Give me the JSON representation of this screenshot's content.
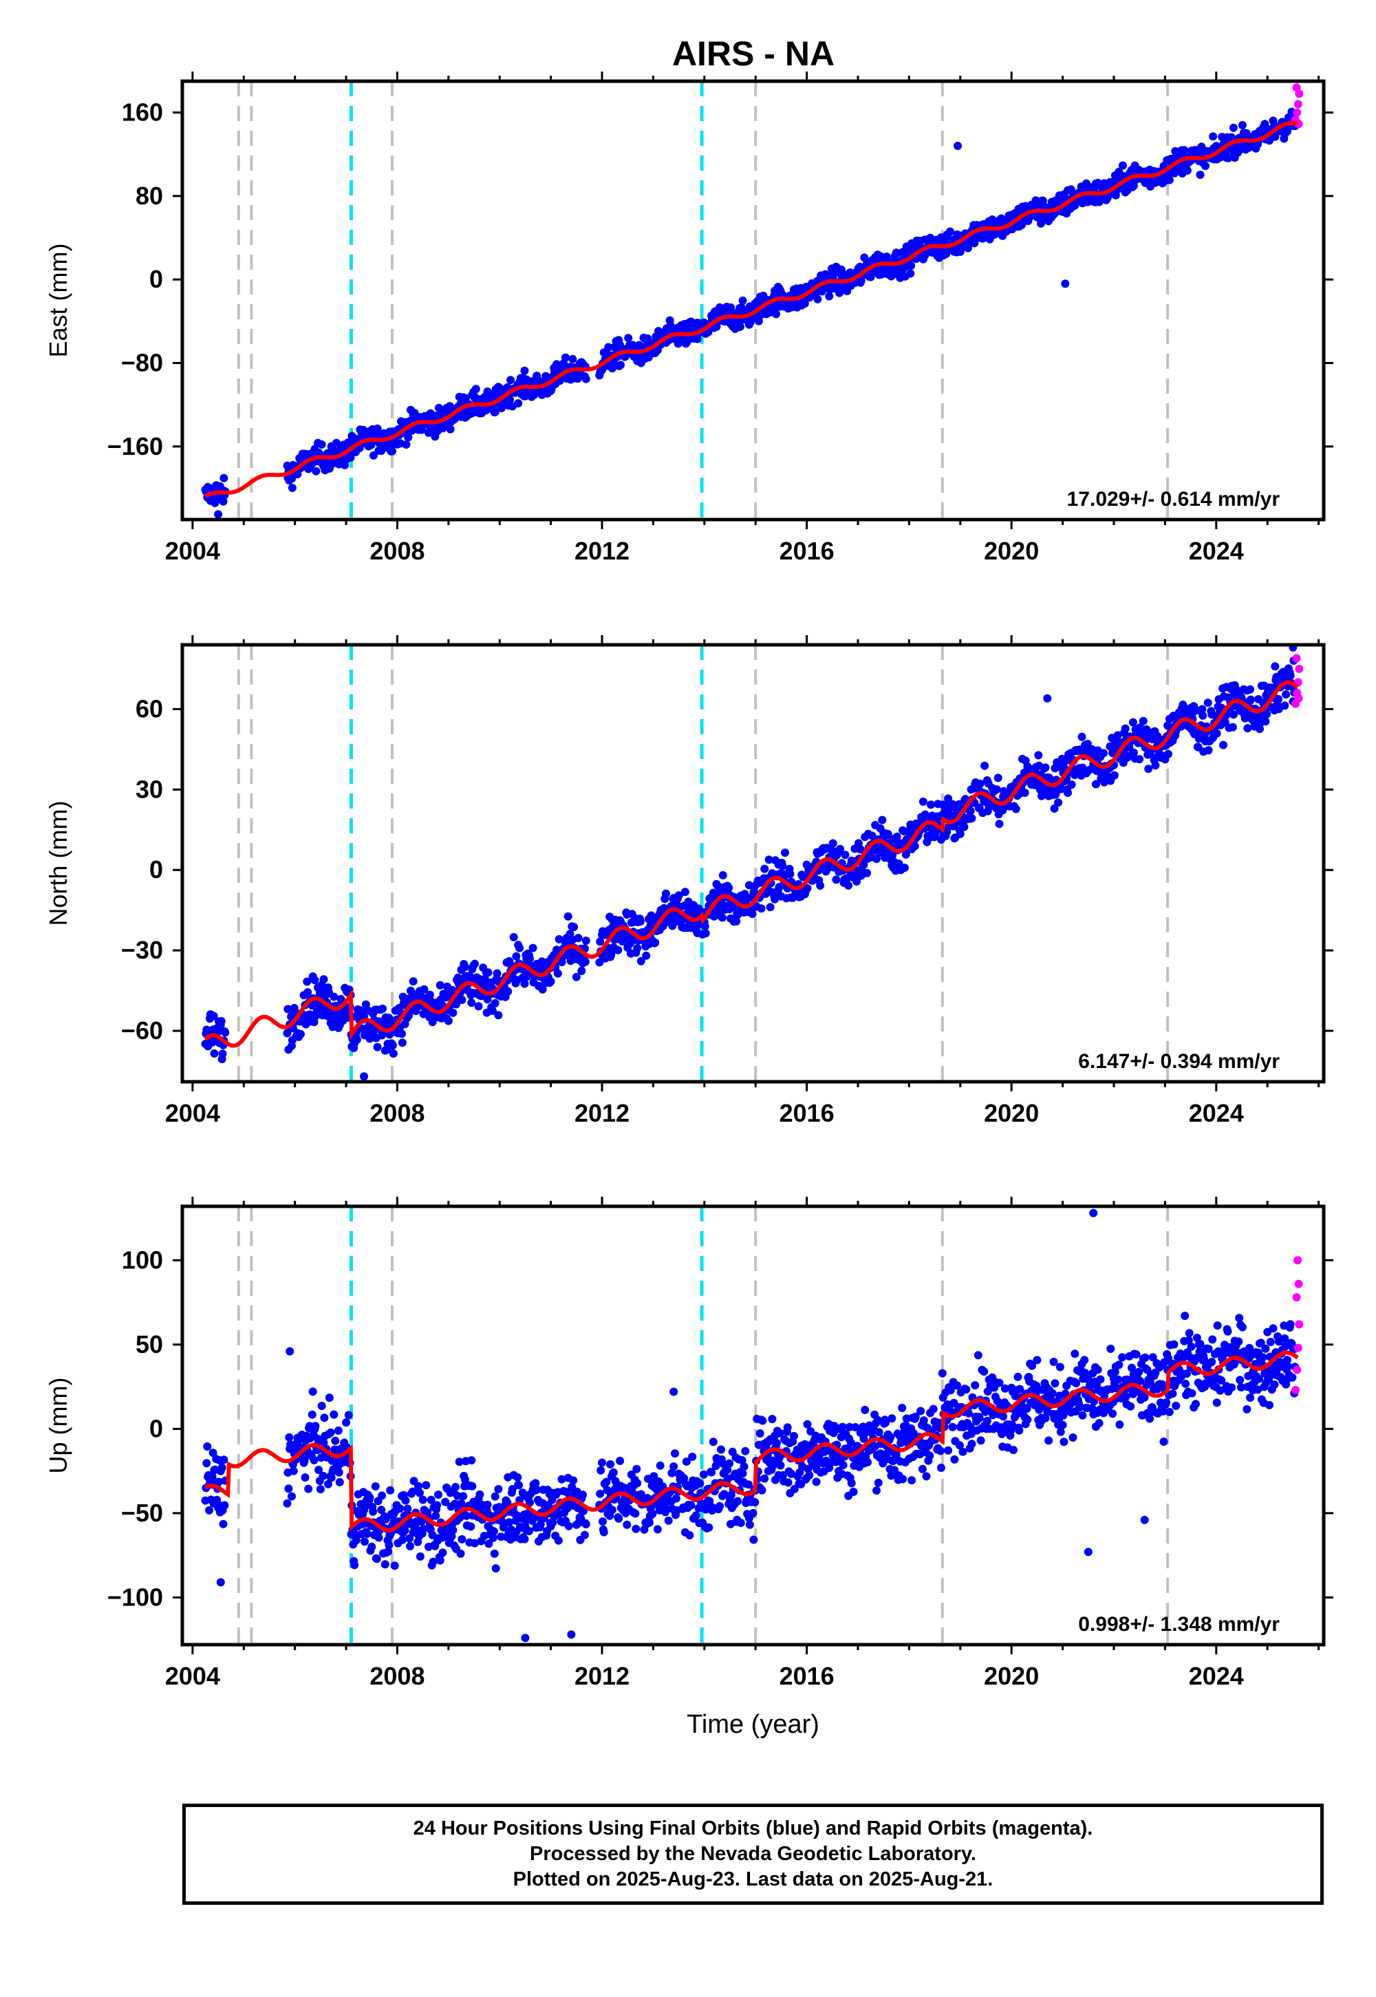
{
  "title": "AIRS - NA",
  "colors": {
    "final_orbits": "#0000ff",
    "rapid_orbits": "#ff00ff",
    "model_fit": "#ff0000",
    "equipment_change": "#c0c0c0",
    "earthquake": "#00e5ee"
  },
  "event_lines": {
    "equipment_change_years": [
      2004.9,
      2005.15,
      2007.9,
      2015.0,
      2018.65,
      2023.05
    ],
    "earthquake_years": [
      2007.1,
      2013.95
    ]
  },
  "chart_data": [
    {
      "type": "scatter",
      "ylabel": "East (mm)",
      "xlim": [
        2003.8,
        2026.1
      ],
      "ylim": [
        -230,
        190
      ],
      "xticks": [
        2004,
        2008,
        2012,
        2016,
        2020,
        2024
      ],
      "yticks": [
        160,
        80,
        0,
        -80,
        -160
      ],
      "ytick_labels": [
        "160",
        "80",
        "0",
        "−80",
        "−160"
      ],
      "rate_label": "17.029+/- 0.614 mm/yr",
      "trend": {
        "x": [
          2004.25,
          2025.6
        ],
        "y": [
          -210,
          150
        ]
      },
      "steps": [],
      "seasonal_amplitude": 3,
      "scatter_spread": 6,
      "outliers": [
        {
          "x": 2018.95,
          "y": 128
        },
        {
          "x": 2021.05,
          "y": -4
        },
        {
          "x": 2004.5,
          "y": -225
        }
      ],
      "rapid_points": [
        {
          "x": 2025.55,
          "y": 153
        },
        {
          "x": 2025.58,
          "y": 160
        },
        {
          "x": 2025.6,
          "y": 168
        },
        {
          "x": 2025.62,
          "y": 178
        },
        {
          "x": 2025.57,
          "y": 184
        },
        {
          "x": 2025.61,
          "y": 149
        }
      ]
    },
    {
      "type": "scatter",
      "ylabel": "North (mm)",
      "xlim": [
        2003.8,
        2026.1
      ],
      "ylim": [
        -79,
        84
      ],
      "xticks": [
        2004,
        2008,
        2012,
        2016,
        2020,
        2024
      ],
      "yticks": [
        60,
        30,
        0,
        -30,
        -60
      ],
      "ytick_labels": [
        "60",
        "30",
        "0",
        "−30",
        "−60"
      ],
      "rate_label": "6.147+/- 0.394 mm/yr",
      "trend": {
        "x": [
          2004.25,
          2025.6
        ],
        "y": [
          -66,
          68
        ]
      },
      "steps": [
        {
          "x": 2007.1,
          "dy": -15
        },
        {
          "x": 2013.95,
          "dy": -2
        },
        {
          "x": 2018.65,
          "dy": 4
        }
      ],
      "seasonal_amplitude": 3.5,
      "scatter_spread": 4,
      "outliers": [
        {
          "x": 2020.7,
          "y": 64
        },
        {
          "x": 2007.35,
          "y": -77
        },
        {
          "x": 2025.5,
          "y": 83
        }
      ],
      "rapid_points": [
        {
          "x": 2025.55,
          "y": 62
        },
        {
          "x": 2025.58,
          "y": 66
        },
        {
          "x": 2025.6,
          "y": 70
        },
        {
          "x": 2025.62,
          "y": 75
        },
        {
          "x": 2025.57,
          "y": 79
        },
        {
          "x": 2025.61,
          "y": 64
        }
      ]
    },
    {
      "type": "scatter",
      "ylabel": "Up (mm)",
      "xlabel": "Time (year)",
      "xlim": [
        2003.8,
        2026.1
      ],
      "ylim": [
        -128,
        132
      ],
      "xticks": [
        2004,
        2008,
        2012,
        2016,
        2020,
        2024
      ],
      "yticks": [
        100,
        50,
        0,
        -50,
        -100
      ],
      "ytick_labels": [
        "100",
        "50",
        "0",
        "−50",
        "−100"
      ],
      "rate_label": "0.998+/- 1.348 mm/yr",
      "trend": {
        "x": [
          2004.25,
          2025.6
        ],
        "y": [
          -38,
          42
        ]
      },
      "steps": [
        {
          "x": 2004.7,
          "dy": 18
        },
        {
          "x": 2007.1,
          "dy": -47
        },
        {
          "x": 2015.0,
          "dy": 17
        },
        {
          "x": 2018.65,
          "dy": 17
        },
        {
          "x": 2023.05,
          "dy": 10
        }
      ],
      "seasonal_amplitude": 4,
      "scatter_spread": 11,
      "outliers": [
        {
          "x": 2021.6,
          "y": 128
        },
        {
          "x": 2021.5,
          "y": -73
        },
        {
          "x": 2010.5,
          "y": -124
        },
        {
          "x": 2011.4,
          "y": -122
        },
        {
          "x": 2004.55,
          "y": -91
        },
        {
          "x": 2022.6,
          "y": -54
        },
        {
          "x": 2013.4,
          "y": 22
        },
        {
          "x": 2005.9,
          "y": 46
        }
      ],
      "rapid_points": [
        {
          "x": 2025.55,
          "y": 23
        },
        {
          "x": 2025.58,
          "y": 35
        },
        {
          "x": 2025.6,
          "y": 48
        },
        {
          "x": 2025.62,
          "y": 62
        },
        {
          "x": 2025.57,
          "y": 78
        },
        {
          "x": 2025.61,
          "y": 86
        },
        {
          "x": 2025.59,
          "y": 100
        }
      ]
    }
  ],
  "footer": {
    "line1": "24 Hour Positions Using Final Orbits (blue) and Rapid Orbits (magenta).",
    "line2": "Processed by the Nevada Geodetic Laboratory.",
    "line3": "Plotted on 2025-Aug-23. Last data on 2025-Aug-21."
  }
}
